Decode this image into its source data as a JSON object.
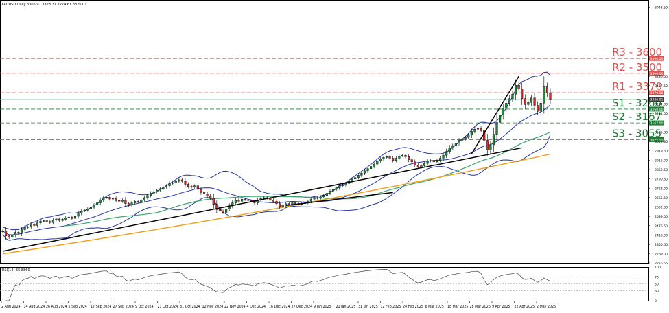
{
  "header": {
    "symbol_line": "XAUUSD,Daily  3305.97 3328.37 3274.61 3326.01"
  },
  "chart_data": {
    "type": "candlestick",
    "title": "XAUUSD,Daily",
    "ohlc_last": {
      "open": 3305.97,
      "high": 3328.37,
      "low": 3274.61,
      "close": 3326.01
    },
    "ylim": [
      2226.55,
      3993
    ],
    "y_ticks": [
      "3943.50",
      "3480.50",
      "3417.50",
      "3294.00",
      "3231.50",
      "3105.30",
      "3042.80",
      "2979.50",
      "2916.00",
      "2853.50",
      "2790.80",
      "2728.00",
      "2665.50",
      "2602.00",
      "2539.50",
      "2476.50",
      "2413.00",
      "2350.50",
      "2289.00",
      "2226.55"
    ],
    "x_ticks": [
      "2 Aug 2024",
      "14 Aug 2024",
      "26 Aug 2024",
      "5 Sep 2024",
      "17 Sep 2024",
      "27 Sep 2024",
      "9 Oct 2024",
      "21 Oct 2024",
      "31 Oct 2024",
      "12 Nov 2024",
      "22 Nov 2024",
      "4 Dec 2024",
      "16 Dec 2024",
      "27 Dec 2024",
      "9 Jan 2025",
      "21 Jan 2025",
      "31 Jan 2025",
      "12 Feb 2025",
      "24 Feb 2025",
      "6 Mar 2025",
      "18 Mar 2025",
      "28 Mar 2025",
      "9 Apr 2025",
      "22 Apr 2025",
      "2 May 2025"
    ],
    "levels": [
      {
        "label": "R3 - 3600",
        "value": 3600,
        "tag": "3600.00",
        "kind": "resistance",
        "color": "#d9534f"
      },
      {
        "label": "R2 - 3500",
        "value": 3500,
        "tag": "3500.00",
        "kind": "resistance",
        "color": "#d9534f"
      },
      {
        "label": "R1 - 3370",
        "value": 3370,
        "tag": "3370.00",
        "kind": "resistance",
        "color": "#d9534f"
      },
      {
        "label": "S1 - 3260",
        "value": 3260,
        "tag": "3260.00",
        "kind": "support",
        "color": "#1e7b34"
      },
      {
        "label": "S2 - 3167",
        "value": 3167,
        "tag": "3167.00",
        "kind": "support",
        "color": "#1e7b34"
      },
      {
        "label": "S3 - 3055",
        "value": 3055,
        "tag": "3055.00",
        "kind": "support",
        "color": "#1e7b34"
      }
    ],
    "price_tag": {
      "value": 3326.01,
      "text": "3326.01"
    },
    "closes": [
      2443,
      2408,
      2398,
      2412,
      2432,
      2425,
      2450,
      2465,
      2470,
      2488,
      2478,
      2495,
      2508,
      2510,
      2505,
      2498,
      2515,
      2522,
      2512,
      2520,
      2530,
      2535,
      2525,
      2540,
      2560,
      2575,
      2580,
      2590,
      2600,
      2615,
      2630,
      2650,
      2665,
      2668,
      2655,
      2660,
      2645,
      2640,
      2650,
      2625,
      2615,
      2630,
      2640,
      2635,
      2650,
      2665,
      2680,
      2695,
      2705,
      2715,
      2725,
      2735,
      2745,
      2760,
      2765,
      2775,
      2785,
      2775,
      2755,
      2740,
      2735,
      2745,
      2720,
      2700,
      2690,
      2675,
      2660,
      2620,
      2585,
      2575,
      2565,
      2590,
      2610,
      2630,
      2650,
      2640,
      2655,
      2650,
      2645,
      2640,
      2630,
      2650,
      2660,
      2665,
      2660,
      2650,
      2640,
      2625,
      2605,
      2615,
      2625,
      2620,
      2630,
      2625,
      2620,
      2625,
      2630,
      2640,
      2655,
      2665,
      2660,
      2670,
      2680,
      2695,
      2710,
      2720,
      2730,
      2745,
      2750,
      2760,
      2775,
      2790,
      2800,
      2815,
      2830,
      2845,
      2860,
      2875,
      2890,
      2910,
      2925,
      2935,
      2940,
      2930,
      2915,
      2930,
      2945,
      2950,
      2940,
      2920,
      2905,
      2885,
      2870,
      2880,
      2895,
      2910,
      2915,
      2905,
      2915,
      2930,
      2950,
      2975,
      3000,
      3015,
      3030,
      3050,
      3060,
      3070,
      3085,
      3110,
      3125,
      3130,
      3115,
      3050,
      2985,
      3020,
      3090,
      3170,
      3220,
      3265,
      3300,
      3330,
      3360,
      3420,
      3395,
      3330,
      3290,
      3305,
      3335,
      3285,
      3245,
      3300,
      3410,
      3370,
      3326
    ],
    "candle_colors": {
      "up": "#1e8a36",
      "down": "#d32f2f"
    },
    "indicator_colors": {
      "bollinger": "#2134a8",
      "ma_green": "#3aa36b",
      "ma_orange": "#f39c12",
      "trendline": "#000000"
    },
    "rsi": {
      "label": "RSI(14) 55.8860",
      "ylim": [
        0,
        100
      ],
      "ticks": [
        "100",
        "70",
        "50",
        "30",
        "0"
      ],
      "levels": [
        70,
        50,
        30
      ]
    }
  }
}
